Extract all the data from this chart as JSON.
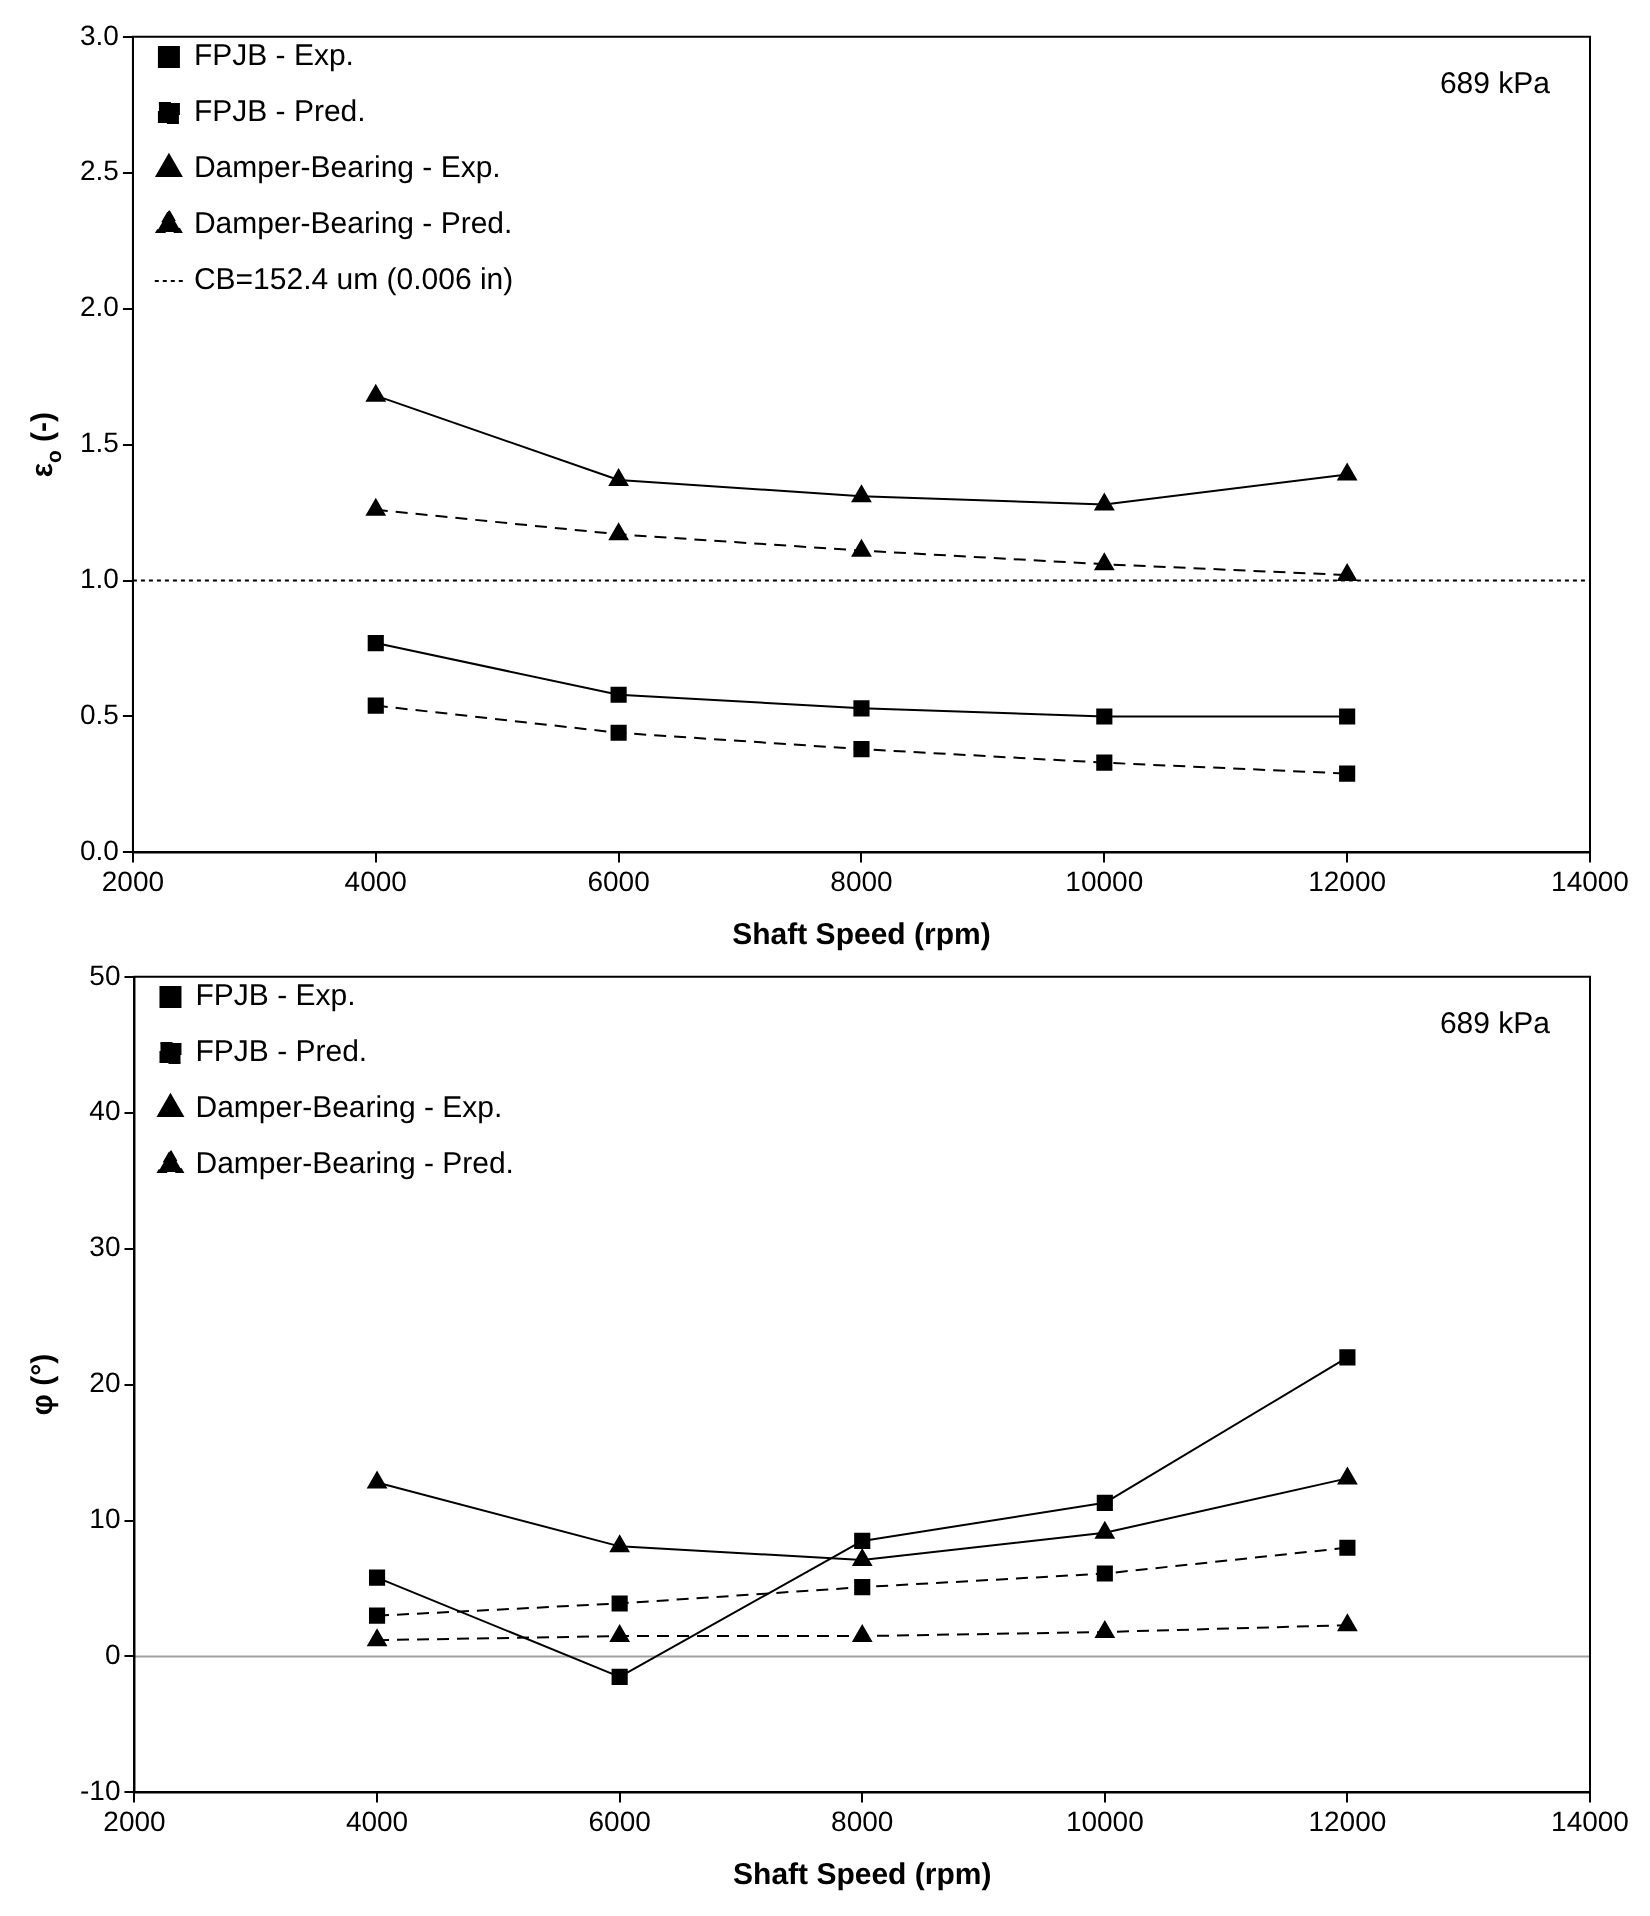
{
  "chart_data": [
    {
      "type": "line",
      "x": [
        4000,
        6000,
        8000,
        10000,
        12000
      ],
      "xlabel": "Shaft Speed (rpm)",
      "ylabel": "ε$_{o}$ (-)",
      "xlim": [
        2000,
        14000
      ],
      "xticks": [
        2000,
        4000,
        6000,
        8000,
        10000,
        12000,
        14000
      ],
      "ylim": [
        0,
        3
      ],
      "yticks": [
        {
          "value": 0,
          "label": "0.0"
        },
        {
          "value": 0.5,
          "label": "0.5"
        },
        {
          "value": 1,
          "label": "1.0"
        },
        {
          "value": 1.5,
          "label": "1.5"
        },
        {
          "value": 2,
          "label": "2.0"
        },
        {
          "value": 2.5,
          "label": "2.5"
        },
        {
          "value": 3,
          "label": "3.0"
        }
      ],
      "grid": false,
      "legend": "top left",
      "annotations": [
        "689 kPa"
      ],
      "series": [
        {
          "name": "FPJB - Exp.",
          "color": "#000000",
          "marker": "square",
          "line_style": "solid",
          "values": [
            0.77,
            0.58,
            0.53,
            0.5,
            0.5
          ]
        },
        {
          "name": "FPJB - Pred.",
          "color": "#000000",
          "marker": "square",
          "line_style": "dashed",
          "values": [
            0.54,
            0.44,
            0.38,
            0.33,
            0.29
          ]
        },
        {
          "name": "Damper-Bearing - Exp.",
          "color": "#000000",
          "marker": "triangle",
          "line_style": "solid",
          "values": [
            1.68,
            1.37,
            1.31,
            1.28,
            1.39
          ]
        },
        {
          "name": "Damper-Bearing - Pred.",
          "color": "#000000",
          "marker": "triangle",
          "line_style": "dashed",
          "values": [
            1.26,
            1.17,
            1.11,
            1.06,
            1.02
          ]
        },
        {
          "name": "CB=152.4 um (0.006 in)",
          "type": "line",
          "color": "#000000",
          "marker": "none",
          "line_style": "dotted",
          "x": [
            2000,
            14000
          ],
          "values": [
            1,
            1
          ]
        }
      ]
    },
    {
      "type": "line",
      "x": [
        4000,
        6000,
        8000,
        10000,
        12000
      ],
      "xlabel": "Shaft Speed (rpm)",
      "ylabel": "φ (°)",
      "xlim": [
        2000,
        14000
      ],
      "xticks": [
        2000,
        4000,
        6000,
        8000,
        10000,
        12000,
        14000
      ],
      "ylim": [
        -10,
        50
      ],
      "yticks": [
        -10,
        0,
        10,
        20,
        30,
        40,
        50
      ],
      "grid": false,
      "legend": "top left",
      "annotations": [
        "689 kPa"
      ],
      "series": [
        {
          "name": "FPJB - Exp.",
          "color": "#000000",
          "marker": "square",
          "line_style": "solid",
          "values": [
            5.8,
            -1.5,
            8.5,
            11.3,
            22
          ]
        },
        {
          "name": "FPJB - Pred.",
          "color": "#000000",
          "marker": "square",
          "line_style": "dashed",
          "values": [
            3,
            3.9,
            5.1,
            6.1,
            8
          ]
        },
        {
          "name": "Damper-Bearing - Exp.",
          "color": "#000000",
          "marker": "triangle",
          "line_style": "solid",
          "values": [
            12.8,
            8.1,
            7.1,
            9.1,
            13.1
          ]
        },
        {
          "name": "Damper-Bearing - Pred.",
          "color": "#000000",
          "marker": "triangle",
          "line_style": "dashed",
          "values": [
            1.2,
            1.5,
            1.5,
            1.8,
            2.3
          ]
        }
      ],
      "ref_lines": [
        {
          "axis": "y",
          "value": 0,
          "color": "#a0a0a0",
          "line_style": "solid"
        }
      ]
    }
  ]
}
